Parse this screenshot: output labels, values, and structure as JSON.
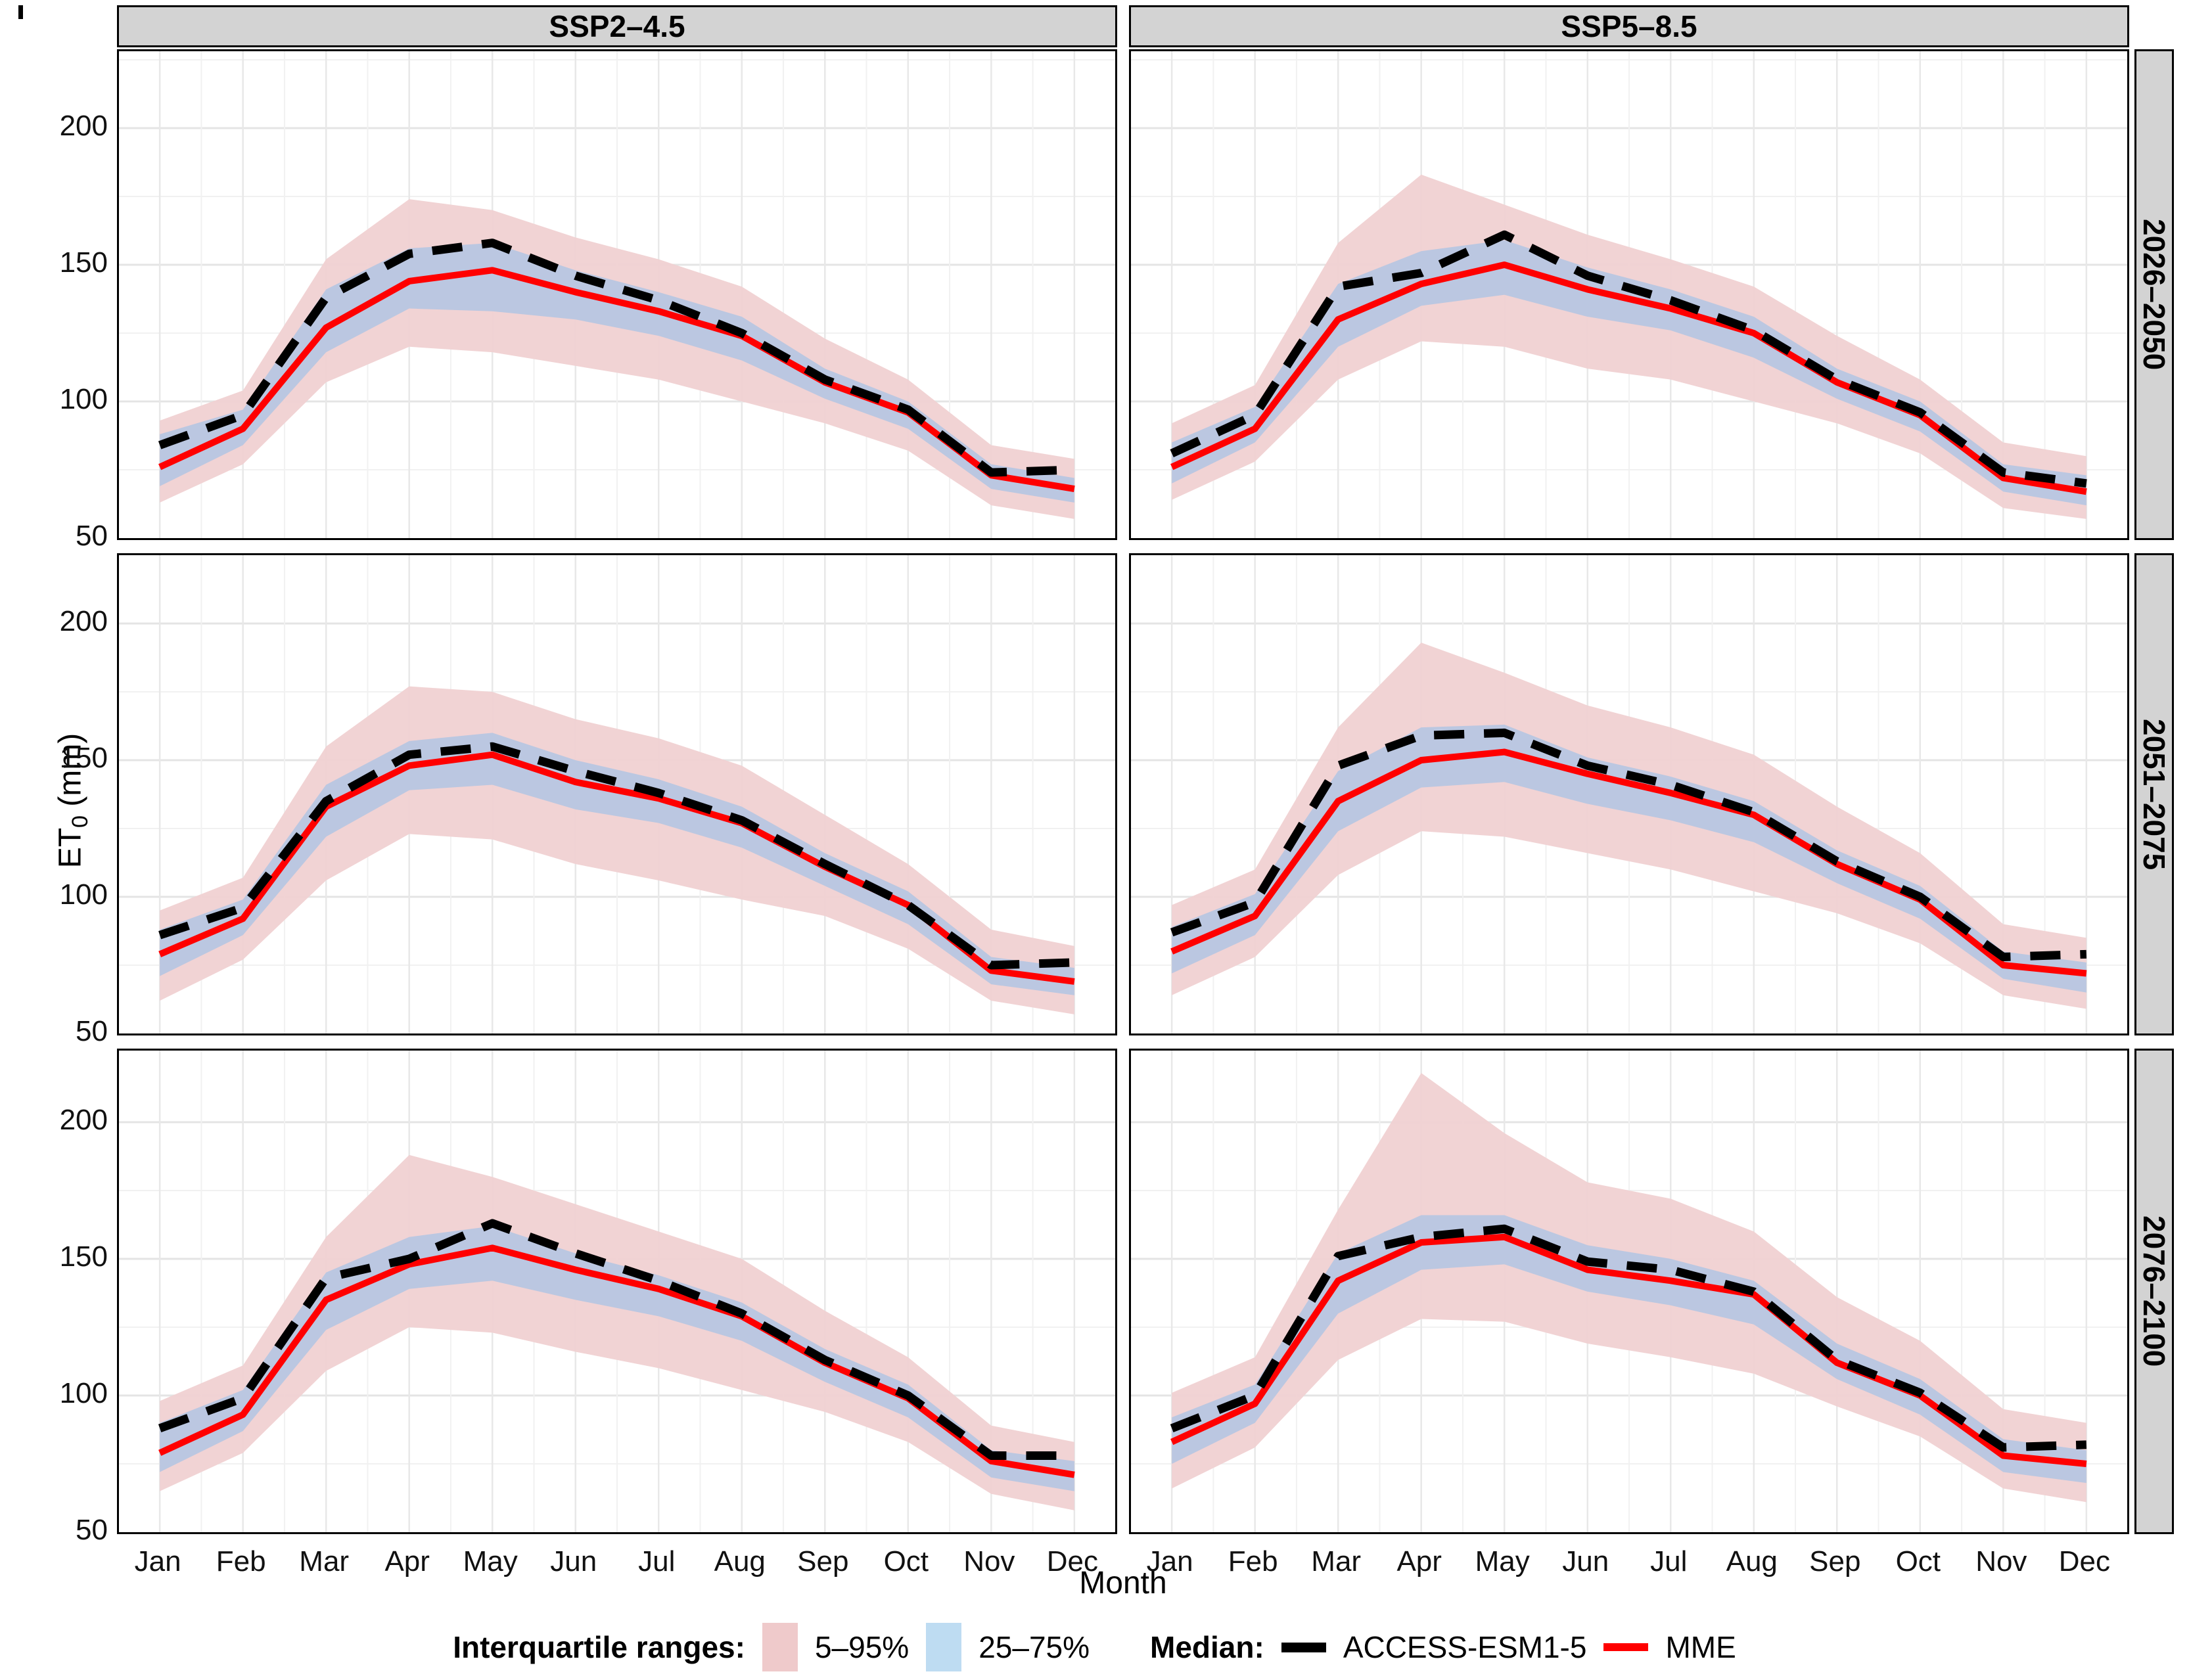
{
  "figure": {
    "col_facets": [
      "SSP2–4.5",
      "SSP5–8.5"
    ],
    "row_facets": [
      "2026–2050",
      "2051–2075",
      "2076–2100"
    ],
    "x_title": "Month",
    "y_title_main": "ET",
    "y_title_sub": "0",
    "y_title_unit": " (mm)",
    "months": [
      "Jan",
      "Feb",
      "Mar",
      "Apr",
      "May",
      "Jun",
      "Jul",
      "Aug",
      "Sep",
      "Oct",
      "Nov",
      "Dec"
    ],
    "y_ticks": [
      200,
      150,
      100,
      50
    ]
  },
  "legend": {
    "ranges_label": "Interquartile ranges:",
    "range1": "5–95%",
    "range2": "25–75%",
    "median_label": "Median:",
    "series1": "ACCESS-ESM1-5",
    "series2": "MME"
  },
  "colors": {
    "band_5_95": "#F0D1D2",
    "band_25_75": "#B7C6E1",
    "legend_pink": "#EFCACB",
    "legend_blue": "#BEDCF2",
    "mme_red": "#FF0000",
    "access_black": "#000000",
    "strip_bg": "#D3D3D3",
    "grid_major": "#E4E4E4",
    "grid_minor": "#F1F1F1"
  },
  "chart_data": [
    {
      "type": "line",
      "facet_col": "SSP2–4.5",
      "facet_row": "2026–2050",
      "categories": [
        "Jan",
        "Feb",
        "Mar",
        "Apr",
        "May",
        "Jun",
        "Jul",
        "Aug",
        "Sep",
        "Oct",
        "Nov",
        "Dec"
      ],
      "xlabel": "Month",
      "ylabel": "ET0 (mm)",
      "ylim": [
        50,
        230
      ],
      "grid": true,
      "legend_position": "bottom",
      "series": [
        {
          "name": "ACCESS-ESM1-5",
          "style": "dashed-black",
          "values": [
            84,
            95,
            138,
            154,
            158,
            146,
            137,
            125,
            108,
            97,
            74,
            75
          ]
        },
        {
          "name": "MME",
          "style": "solid-red",
          "values": [
            76,
            90,
            127,
            144,
            148,
            140,
            133,
            124,
            107,
            96,
            73,
            68
          ]
        }
      ],
      "bands": [
        {
          "name": "5–95%",
          "color_key": "band_5_95",
          "lower": [
            63,
            77,
            107,
            120,
            118,
            113,
            108,
            100,
            92,
            82,
            62,
            57
          ],
          "upper": [
            93,
            104,
            152,
            174,
            170,
            160,
            152,
            142,
            123,
            108,
            84,
            79
          ]
        },
        {
          "name": "25–75%",
          "color_key": "band_25_75",
          "lower": [
            69,
            84,
            118,
            134,
            133,
            130,
            124,
            115,
            101,
            90,
            68,
            63
          ],
          "upper": [
            88,
            97,
            141,
            156,
            158,
            148,
            140,
            131,
            112,
            100,
            77,
            72
          ]
        }
      ]
    },
    {
      "type": "line",
      "facet_col": "SSP5–8.5",
      "facet_row": "2026–2050",
      "categories": [
        "Jan",
        "Feb",
        "Mar",
        "Apr",
        "May",
        "Jun",
        "Jul",
        "Aug",
        "Sep",
        "Oct",
        "Nov",
        "Dec"
      ],
      "xlabel": "Month",
      "ylabel": "ET0 (mm)",
      "ylim": [
        50,
        230
      ],
      "grid": true,
      "legend_position": "bottom",
      "series": [
        {
          "name": "ACCESS-ESM1-5",
          "style": "dashed-black",
          "values": [
            81,
            95,
            142,
            147,
            161,
            146,
            137,
            126,
            108,
            96,
            74,
            70
          ]
        },
        {
          "name": "MME",
          "style": "solid-red",
          "values": [
            76,
            90,
            130,
            143,
            150,
            141,
            134,
            125,
            107,
            95,
            72,
            67
          ]
        }
      ],
      "bands": [
        {
          "name": "5–95%",
          "color_key": "band_5_95",
          "lower": [
            64,
            78,
            108,
            122,
            120,
            112,
            108,
            100,
            92,
            81,
            61,
            57
          ],
          "upper": [
            92,
            106,
            158,
            183,
            172,
            161,
            152,
            142,
            124,
            108,
            85,
            80
          ]
        },
        {
          "name": "25–75%",
          "color_key": "band_25_75",
          "lower": [
            70,
            85,
            120,
            135,
            139,
            131,
            126,
            116,
            101,
            89,
            67,
            62
          ],
          "upper": [
            85,
            98,
            143,
            155,
            159,
            149,
            141,
            131,
            112,
            100,
            77,
            73
          ]
        }
      ]
    },
    {
      "type": "line",
      "facet_col": "SSP2–4.5",
      "facet_row": "2051–2075",
      "categories": [
        "Jan",
        "Feb",
        "Mar",
        "Apr",
        "May",
        "Jun",
        "Jul",
        "Aug",
        "Sep",
        "Oct",
        "Nov",
        "Dec"
      ],
      "xlabel": "Month",
      "ylabel": "ET0 (mm)",
      "ylim": [
        50,
        230
      ],
      "grid": true,
      "legend_position": "bottom",
      "series": [
        {
          "name": "ACCESS-ESM1-5",
          "style": "dashed-black",
          "values": [
            86,
            96,
            135,
            152,
            155,
            146,
            138,
            128,
            112,
            97,
            75,
            76
          ]
        },
        {
          "name": "MME",
          "style": "solid-red",
          "values": [
            79,
            92,
            133,
            148,
            152,
            142,
            136,
            127,
            111,
            97,
            73,
            69
          ]
        }
      ],
      "bands": [
        {
          "name": "5–95%",
          "color_key": "band_5_95",
          "lower": [
            62,
            77,
            106,
            123,
            121,
            112,
            106,
            99,
            93,
            81,
            62,
            57
          ],
          "upper": [
            95,
            107,
            155,
            177,
            175,
            165,
            158,
            148,
            130,
            112,
            88,
            82
          ]
        },
        {
          "name": "25–75%",
          "color_key": "band_25_75",
          "lower": [
            71,
            86,
            122,
            139,
            141,
            132,
            127,
            118,
            104,
            90,
            68,
            64
          ],
          "upper": [
            88,
            99,
            141,
            157,
            160,
            150,
            143,
            133,
            116,
            102,
            78,
            74
          ]
        }
      ]
    },
    {
      "type": "line",
      "facet_col": "SSP5–8.5",
      "facet_row": "2051–2075",
      "categories": [
        "Jan",
        "Feb",
        "Mar",
        "Apr",
        "May",
        "Jun",
        "Jul",
        "Aug",
        "Sep",
        "Oct",
        "Nov",
        "Dec"
      ],
      "xlabel": "Month",
      "ylabel": "ET0 (mm)",
      "ylim": [
        50,
        230
      ],
      "grid": true,
      "legend_position": "bottom",
      "series": [
        {
          "name": "ACCESS-ESM1-5",
          "style": "dashed-black",
          "values": [
            87,
            98,
            148,
            159,
            160,
            148,
            141,
            131,
            113,
            100,
            78,
            79
          ]
        },
        {
          "name": "MME",
          "style": "solid-red",
          "values": [
            80,
            93,
            135,
            150,
            153,
            145,
            138,
            130,
            112,
            99,
            75,
            72
          ]
        }
      ],
      "bands": [
        {
          "name": "5–95%",
          "color_key": "band_5_95",
          "lower": [
            64,
            78,
            108,
            124,
            122,
            116,
            110,
            102,
            94,
            83,
            64,
            59
          ],
          "upper": [
            97,
            110,
            162,
            193,
            182,
            170,
            162,
            152,
            133,
            116,
            90,
            85
          ]
        },
        {
          "name": "25–75%",
          "color_key": "band_25_75",
          "lower": [
            72,
            86,
            124,
            140,
            142,
            134,
            128,
            120,
            105,
            92,
            70,
            65
          ],
          "upper": [
            89,
            101,
            146,
            162,
            163,
            151,
            144,
            135,
            117,
            104,
            80,
            76
          ]
        }
      ]
    },
    {
      "type": "line",
      "facet_col": "SSP2–4.5",
      "facet_row": "2076–2100",
      "categories": [
        "Jan",
        "Feb",
        "Mar",
        "Apr",
        "May",
        "Jun",
        "Jul",
        "Aug",
        "Sep",
        "Oct",
        "Nov",
        "Dec"
      ],
      "xlabel": "Month",
      "ylabel": "ET0 (mm)",
      "ylim": [
        50,
        230
      ],
      "grid": true,
      "legend_position": "bottom",
      "series": [
        {
          "name": "ACCESS-ESM1-5",
          "style": "dashed-black",
          "values": [
            88,
            99,
            143,
            150,
            163,
            152,
            142,
            130,
            113,
            100,
            78,
            78
          ]
        },
        {
          "name": "MME",
          "style": "solid-red",
          "values": [
            79,
            93,
            135,
            148,
            154,
            146,
            139,
            129,
            112,
            99,
            76,
            71
          ]
        }
      ],
      "bands": [
        {
          "name": "5–95%",
          "color_key": "band_5_95",
          "lower": [
            65,
            79,
            109,
            125,
            123,
            116,
            110,
            102,
            94,
            83,
            64,
            58
          ],
          "upper": [
            98,
            111,
            158,
            188,
            180,
            170,
            160,
            150,
            131,
            114,
            89,
            83
          ]
        },
        {
          "name": "25–75%",
          "color_key": "band_25_75",
          "lower": [
            72,
            87,
            124,
            139,
            142,
            135,
            129,
            120,
            105,
            92,
            70,
            65
          ],
          "upper": [
            90,
            102,
            145,
            158,
            162,
            152,
            144,
            134,
            117,
            104,
            80,
            76
          ]
        }
      ]
    },
    {
      "type": "line",
      "facet_col": "SSP5–8.5",
      "facet_row": "2076–2100",
      "categories": [
        "Jan",
        "Feb",
        "Mar",
        "Apr",
        "May",
        "Jun",
        "Jul",
        "Aug",
        "Sep",
        "Oct",
        "Nov",
        "Dec"
      ],
      "xlabel": "Month",
      "ylabel": "ET0 (mm)",
      "ylim": [
        50,
        230
      ],
      "grid": true,
      "legend_position": "bottom",
      "series": [
        {
          "name": "ACCESS-ESM1-5",
          "style": "dashed-black",
          "values": [
            88,
            100,
            151,
            158,
            161,
            149,
            146,
            138,
            113,
            101,
            81,
            82
          ]
        },
        {
          "name": "MME",
          "style": "solid-red",
          "values": [
            83,
            97,
            142,
            156,
            158,
            146,
            142,
            137,
            112,
            100,
            78,
            75
          ]
        }
      ],
      "bands": [
        {
          "name": "5–95%",
          "color_key": "band_5_95",
          "lower": [
            66,
            81,
            113,
            128,
            127,
            119,
            114,
            108,
            96,
            85,
            66,
            61
          ],
          "upper": [
            101,
            114,
            168,
            218,
            196,
            178,
            172,
            160,
            136,
            120,
            95,
            90
          ]
        },
        {
          "name": "25–75%",
          "color_key": "band_25_75",
          "lower": [
            75,
            90,
            130,
            146,
            148,
            138,
            133,
            126,
            106,
            93,
            72,
            68
          ],
          "upper": [
            92,
            104,
            152,
            166,
            166,
            155,
            150,
            142,
            119,
            106,
            84,
            80
          ]
        }
      ]
    }
  ]
}
